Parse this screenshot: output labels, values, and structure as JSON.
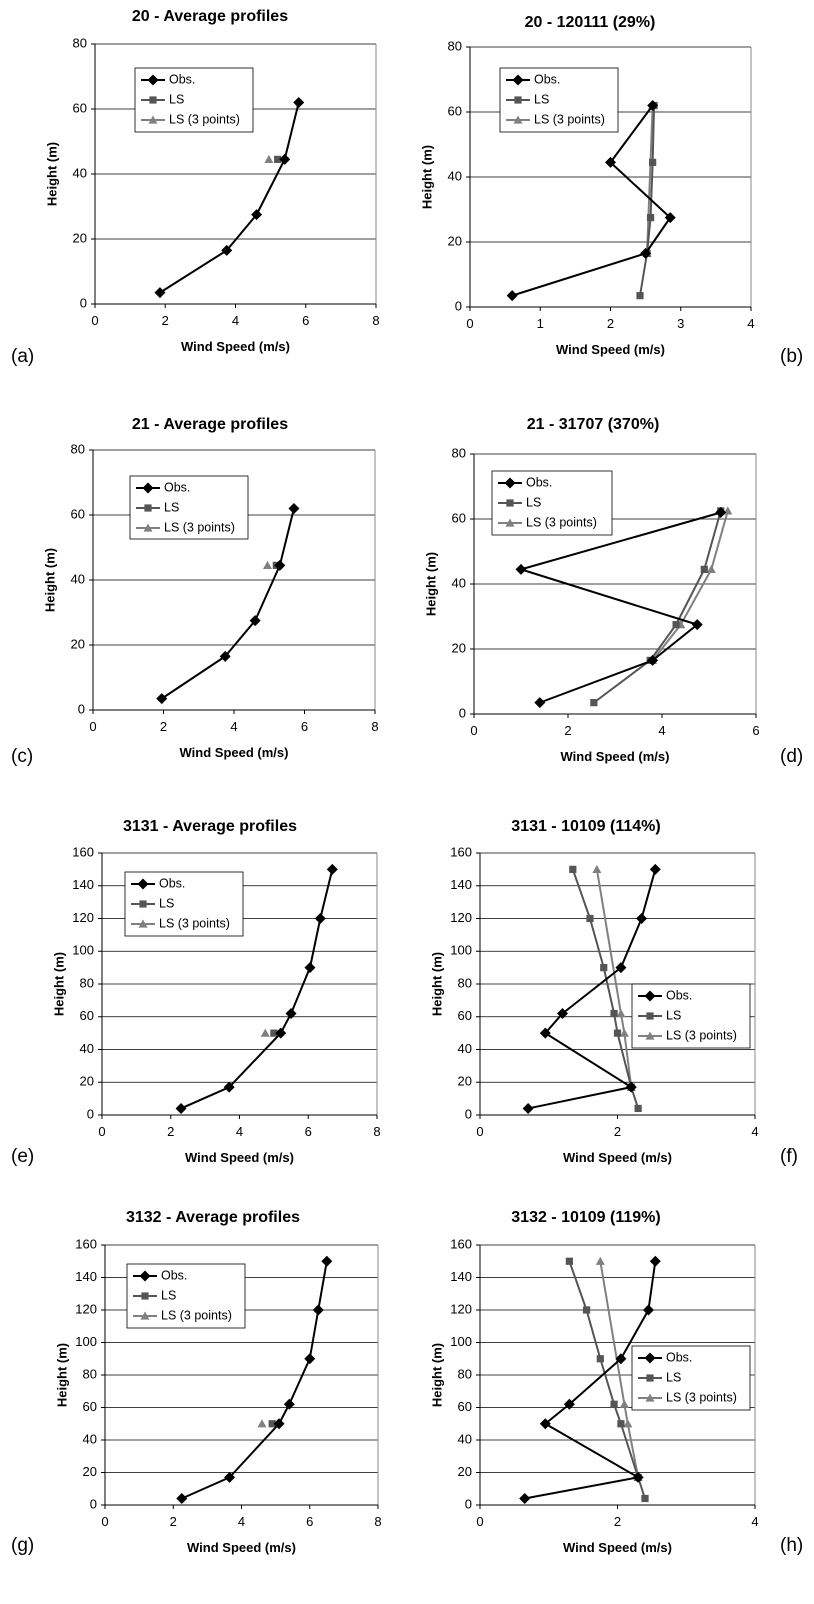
{
  "legend_labels": [
    "Obs.",
    "LS",
    "LS (3 points)"
  ],
  "series_colors": {
    "Obs.": "#000000",
    "LS": "#555555",
    "LS (3 points)": "#808080"
  },
  "chart_data": [
    {
      "letter": "(a)",
      "type": "line",
      "title": "20 - Average profiles",
      "xlabel": "Wind Speed (m/s)",
      "ylabel": "Height (m)",
      "xlim": [
        0,
        8
      ],
      "xticks": [
        0,
        2,
        4,
        6,
        8
      ],
      "ylim": [
        0,
        80
      ],
      "yticks": [
        0,
        20,
        40,
        60,
        80
      ],
      "grid": "horizontal",
      "legend_position": "top-left",
      "series": [
        {
          "name": "Obs.",
          "marker": "diamond",
          "connected": true,
          "points": [
            [
              1.85,
              3.5
            ],
            [
              3.75,
              16.5
            ],
            [
              4.6,
              27.5
            ],
            [
              5.4,
              44.5
            ],
            [
              5.8,
              62
            ]
          ]
        },
        {
          "name": "LS",
          "marker": "square",
          "connected": true,
          "points": [
            [
              5.2,
              44.5
            ]
          ]
        },
        {
          "name": "LS (3 points)",
          "marker": "triangle",
          "connected": true,
          "points": [
            [
              4.95,
              44.5
            ]
          ]
        }
      ]
    },
    {
      "letter": "(b)",
      "type": "line",
      "title": "20 - 120111 (29%)",
      "xlabel": "Wind Speed (m/s)",
      "ylabel": "Height (m)",
      "xlim": [
        0,
        4
      ],
      "xticks": [
        0,
        1,
        2,
        3,
        4
      ],
      "ylim": [
        0,
        80
      ],
      "yticks": [
        0,
        20,
        40,
        60,
        80
      ],
      "grid": "horizontal",
      "legend_position": "top-left",
      "series": [
        {
          "name": "Obs.",
          "marker": "diamond",
          "connected": true,
          "points": [
            [
              0.6,
              3.5
            ],
            [
              2.5,
              16.5
            ],
            [
              2.85,
              27.5
            ],
            [
              2.0,
              44.5
            ],
            [
              2.6,
              62
            ]
          ]
        },
        {
          "name": "LS",
          "marker": "square",
          "connected": true,
          "points": [
            [
              2.42,
              3.5
            ],
            [
              2.52,
              16.5
            ],
            [
              2.57,
              27.5
            ],
            [
              2.6,
              44.5
            ],
            [
              2.62,
              62
            ]
          ]
        },
        {
          "name": "LS (3 points)",
          "marker": "triangle",
          "connected": true,
          "points": [
            [
              2.52,
              16.5
            ],
            [
              2.6,
              62
            ]
          ]
        }
      ]
    },
    {
      "letter": "(c)",
      "type": "line",
      "title": "21 - Average profiles",
      "xlabel": "Wind Speed (m/s)",
      "ylabel": "Height (m)",
      "xlim": [
        0,
        8
      ],
      "xticks": [
        0,
        2,
        4,
        6,
        8
      ],
      "ylim": [
        0,
        80
      ],
      "yticks": [
        0,
        20,
        40,
        60,
        80
      ],
      "grid": "horizontal",
      "legend_position": "top-left",
      "series": [
        {
          "name": "Obs.",
          "marker": "diamond",
          "connected": true,
          "points": [
            [
              1.95,
              3.5
            ],
            [
              3.75,
              16.5
            ],
            [
              4.6,
              27.5
            ],
            [
              5.3,
              44.5
            ],
            [
              5.7,
              62
            ]
          ]
        },
        {
          "name": "LS",
          "marker": "square",
          "connected": true,
          "points": [
            [
              5.2,
              44.5
            ]
          ]
        },
        {
          "name": "LS (3 points)",
          "marker": "triangle",
          "connected": true,
          "points": [
            [
              4.95,
              44.5
            ]
          ]
        }
      ]
    },
    {
      "letter": "(d)",
      "type": "line",
      "title": "21 - 31707 (370%)",
      "xlabel": "Wind Speed (m/s)",
      "ylabel": "Height (m)",
      "xlim": [
        0,
        6
      ],
      "xticks": [
        0,
        2,
        4,
        6
      ],
      "ylim": [
        0,
        80
      ],
      "yticks": [
        0,
        20,
        40,
        60,
        80
      ],
      "grid": "horizontal",
      "legend_position": "top-left",
      "series": [
        {
          "name": "Obs.",
          "marker": "diamond",
          "connected": true,
          "points": [
            [
              1.4,
              3.5
            ],
            [
              3.8,
              16.5
            ],
            [
              4.75,
              27.5
            ],
            [
              1.0,
              44.5
            ],
            [
              5.25,
              62
            ]
          ]
        },
        {
          "name": "LS",
          "marker": "square",
          "connected": true,
          "points": [
            [
              2.55,
              3.5
            ],
            [
              3.75,
              16.5
            ],
            [
              4.3,
              27.5
            ],
            [
              4.9,
              44.5
            ],
            [
              5.25,
              62.5
            ]
          ]
        },
        {
          "name": "LS (3 points)",
          "marker": "triangle",
          "connected": true,
          "points": [
            [
              3.8,
              16.5
            ],
            [
              4.4,
              27.5
            ],
            [
              5.05,
              44.5
            ],
            [
              5.4,
              62.5
            ]
          ]
        }
      ]
    },
    {
      "letter": "(e)",
      "type": "line",
      "title": "3131 - Average profiles",
      "xlabel": "Wind Speed (m/s)",
      "ylabel": "Height (m)",
      "xlim": [
        0,
        8
      ],
      "xticks": [
        0,
        2,
        4,
        6,
        8
      ],
      "ylim": [
        0,
        160
      ],
      "yticks": [
        0,
        20,
        40,
        60,
        80,
        100,
        120,
        140,
        160
      ],
      "grid": "horizontal",
      "legend_position": "top-left",
      "series": [
        {
          "name": "Obs.",
          "marker": "diamond",
          "connected": true,
          "points": [
            [
              2.3,
              4
            ],
            [
              3.7,
              17
            ],
            [
              5.2,
              50
            ],
            [
              5.5,
              62
            ],
            [
              6.05,
              90
            ],
            [
              6.35,
              120
            ],
            [
              6.7,
              150
            ]
          ]
        },
        {
          "name": "LS",
          "marker": "square",
          "connected": true,
          "points": [
            [
              5.0,
              50
            ]
          ]
        },
        {
          "name": "LS (3 points)",
          "marker": "triangle",
          "connected": true,
          "points": [
            [
              4.75,
              50
            ]
          ]
        }
      ]
    },
    {
      "letter": "(f)",
      "type": "line",
      "title": "3131 - 10109 (114%)",
      "xlabel": "Wind Speed (m/s)",
      "ylabel": "Height (m)",
      "xlim": [
        0,
        4
      ],
      "xticks": [
        0,
        2,
        4
      ],
      "ylim": [
        0,
        160
      ],
      "yticks": [
        0,
        20,
        40,
        60,
        80,
        100,
        120,
        140,
        160
      ],
      "grid": "horizontal",
      "legend_position": "middle-right",
      "series": [
        {
          "name": "Obs.",
          "marker": "diamond",
          "connected": true,
          "points": [
            [
              0.7,
              4
            ],
            [
              2.2,
              17
            ],
            [
              0.95,
              50
            ],
            [
              1.2,
              62
            ],
            [
              2.05,
              90
            ],
            [
              2.35,
              120
            ],
            [
              2.55,
              150
            ]
          ]
        },
        {
          "name": "LS",
          "marker": "square",
          "connected": true,
          "points": [
            [
              2.3,
              4
            ],
            [
              2.2,
              17
            ],
            [
              2.0,
              50
            ],
            [
              1.95,
              62
            ],
            [
              1.8,
              90
            ],
            [
              1.6,
              120
            ],
            [
              1.35,
              150
            ]
          ]
        },
        {
          "name": "LS (3 points)",
          "marker": "triangle",
          "connected": true,
          "points": [
            [
              2.2,
              17
            ],
            [
              2.1,
              50
            ],
            [
              2.05,
              62
            ],
            [
              1.7,
              150
            ]
          ]
        }
      ]
    },
    {
      "letter": "(g)",
      "type": "line",
      "title": "3132 - Average profiles",
      "xlabel": "Wind Speed (m/s)",
      "ylabel": "Height (m)",
      "xlim": [
        0,
        8
      ],
      "xticks": [
        0,
        2,
        4,
        6,
        8
      ],
      "ylim": [
        0,
        160
      ],
      "yticks": [
        0,
        20,
        40,
        60,
        80,
        100,
        120,
        140,
        160
      ],
      "grid": "horizontal",
      "legend_position": "top-left",
      "series": [
        {
          "name": "Obs.",
          "marker": "diamond",
          "connected": true,
          "points": [
            [
              2.25,
              4
            ],
            [
              3.65,
              17
            ],
            [
              5.1,
              50
            ],
            [
              5.4,
              62
            ],
            [
              6.0,
              90
            ],
            [
              6.25,
              120
            ],
            [
              6.5,
              150
            ]
          ]
        },
        {
          "name": "LS",
          "marker": "square",
          "connected": true,
          "points": [
            [
              4.9,
              50
            ]
          ]
        },
        {
          "name": "LS (3 points)",
          "marker": "triangle",
          "connected": true,
          "points": [
            [
              4.6,
              50
            ]
          ]
        }
      ]
    },
    {
      "letter": "(h)",
      "type": "line",
      "title": "3132 - 10109 (119%)",
      "xlabel": "Wind Speed (m/s)",
      "ylabel": "Height (m)",
      "xlim": [
        0,
        4
      ],
      "xticks": [
        0,
        2,
        4
      ],
      "ylim": [
        0,
        160
      ],
      "yticks": [
        0,
        20,
        40,
        60,
        80,
        100,
        120,
        140,
        160
      ],
      "grid": "horizontal",
      "legend_position": "middle-right",
      "series": [
        {
          "name": "Obs.",
          "marker": "diamond",
          "connected": true,
          "points": [
            [
              0.65,
              4
            ],
            [
              2.3,
              17
            ],
            [
              0.95,
              50
            ],
            [
              1.3,
              62
            ],
            [
              2.05,
              90
            ],
            [
              2.45,
              120
            ],
            [
              2.55,
              150
            ]
          ]
        },
        {
          "name": "LS",
          "marker": "square",
          "connected": true,
          "points": [
            [
              2.4,
              4
            ],
            [
              2.3,
              17
            ],
            [
              2.05,
              50
            ],
            [
              1.95,
              62
            ],
            [
              1.75,
              90
            ],
            [
              1.55,
              120
            ],
            [
              1.3,
              150
            ]
          ]
        },
        {
          "name": "LS (3 points)",
          "marker": "triangle",
          "connected": true,
          "points": [
            [
              2.3,
              17
            ],
            [
              2.15,
              50
            ],
            [
              2.1,
              62
            ],
            [
              1.75,
              150
            ]
          ]
        }
      ]
    }
  ]
}
